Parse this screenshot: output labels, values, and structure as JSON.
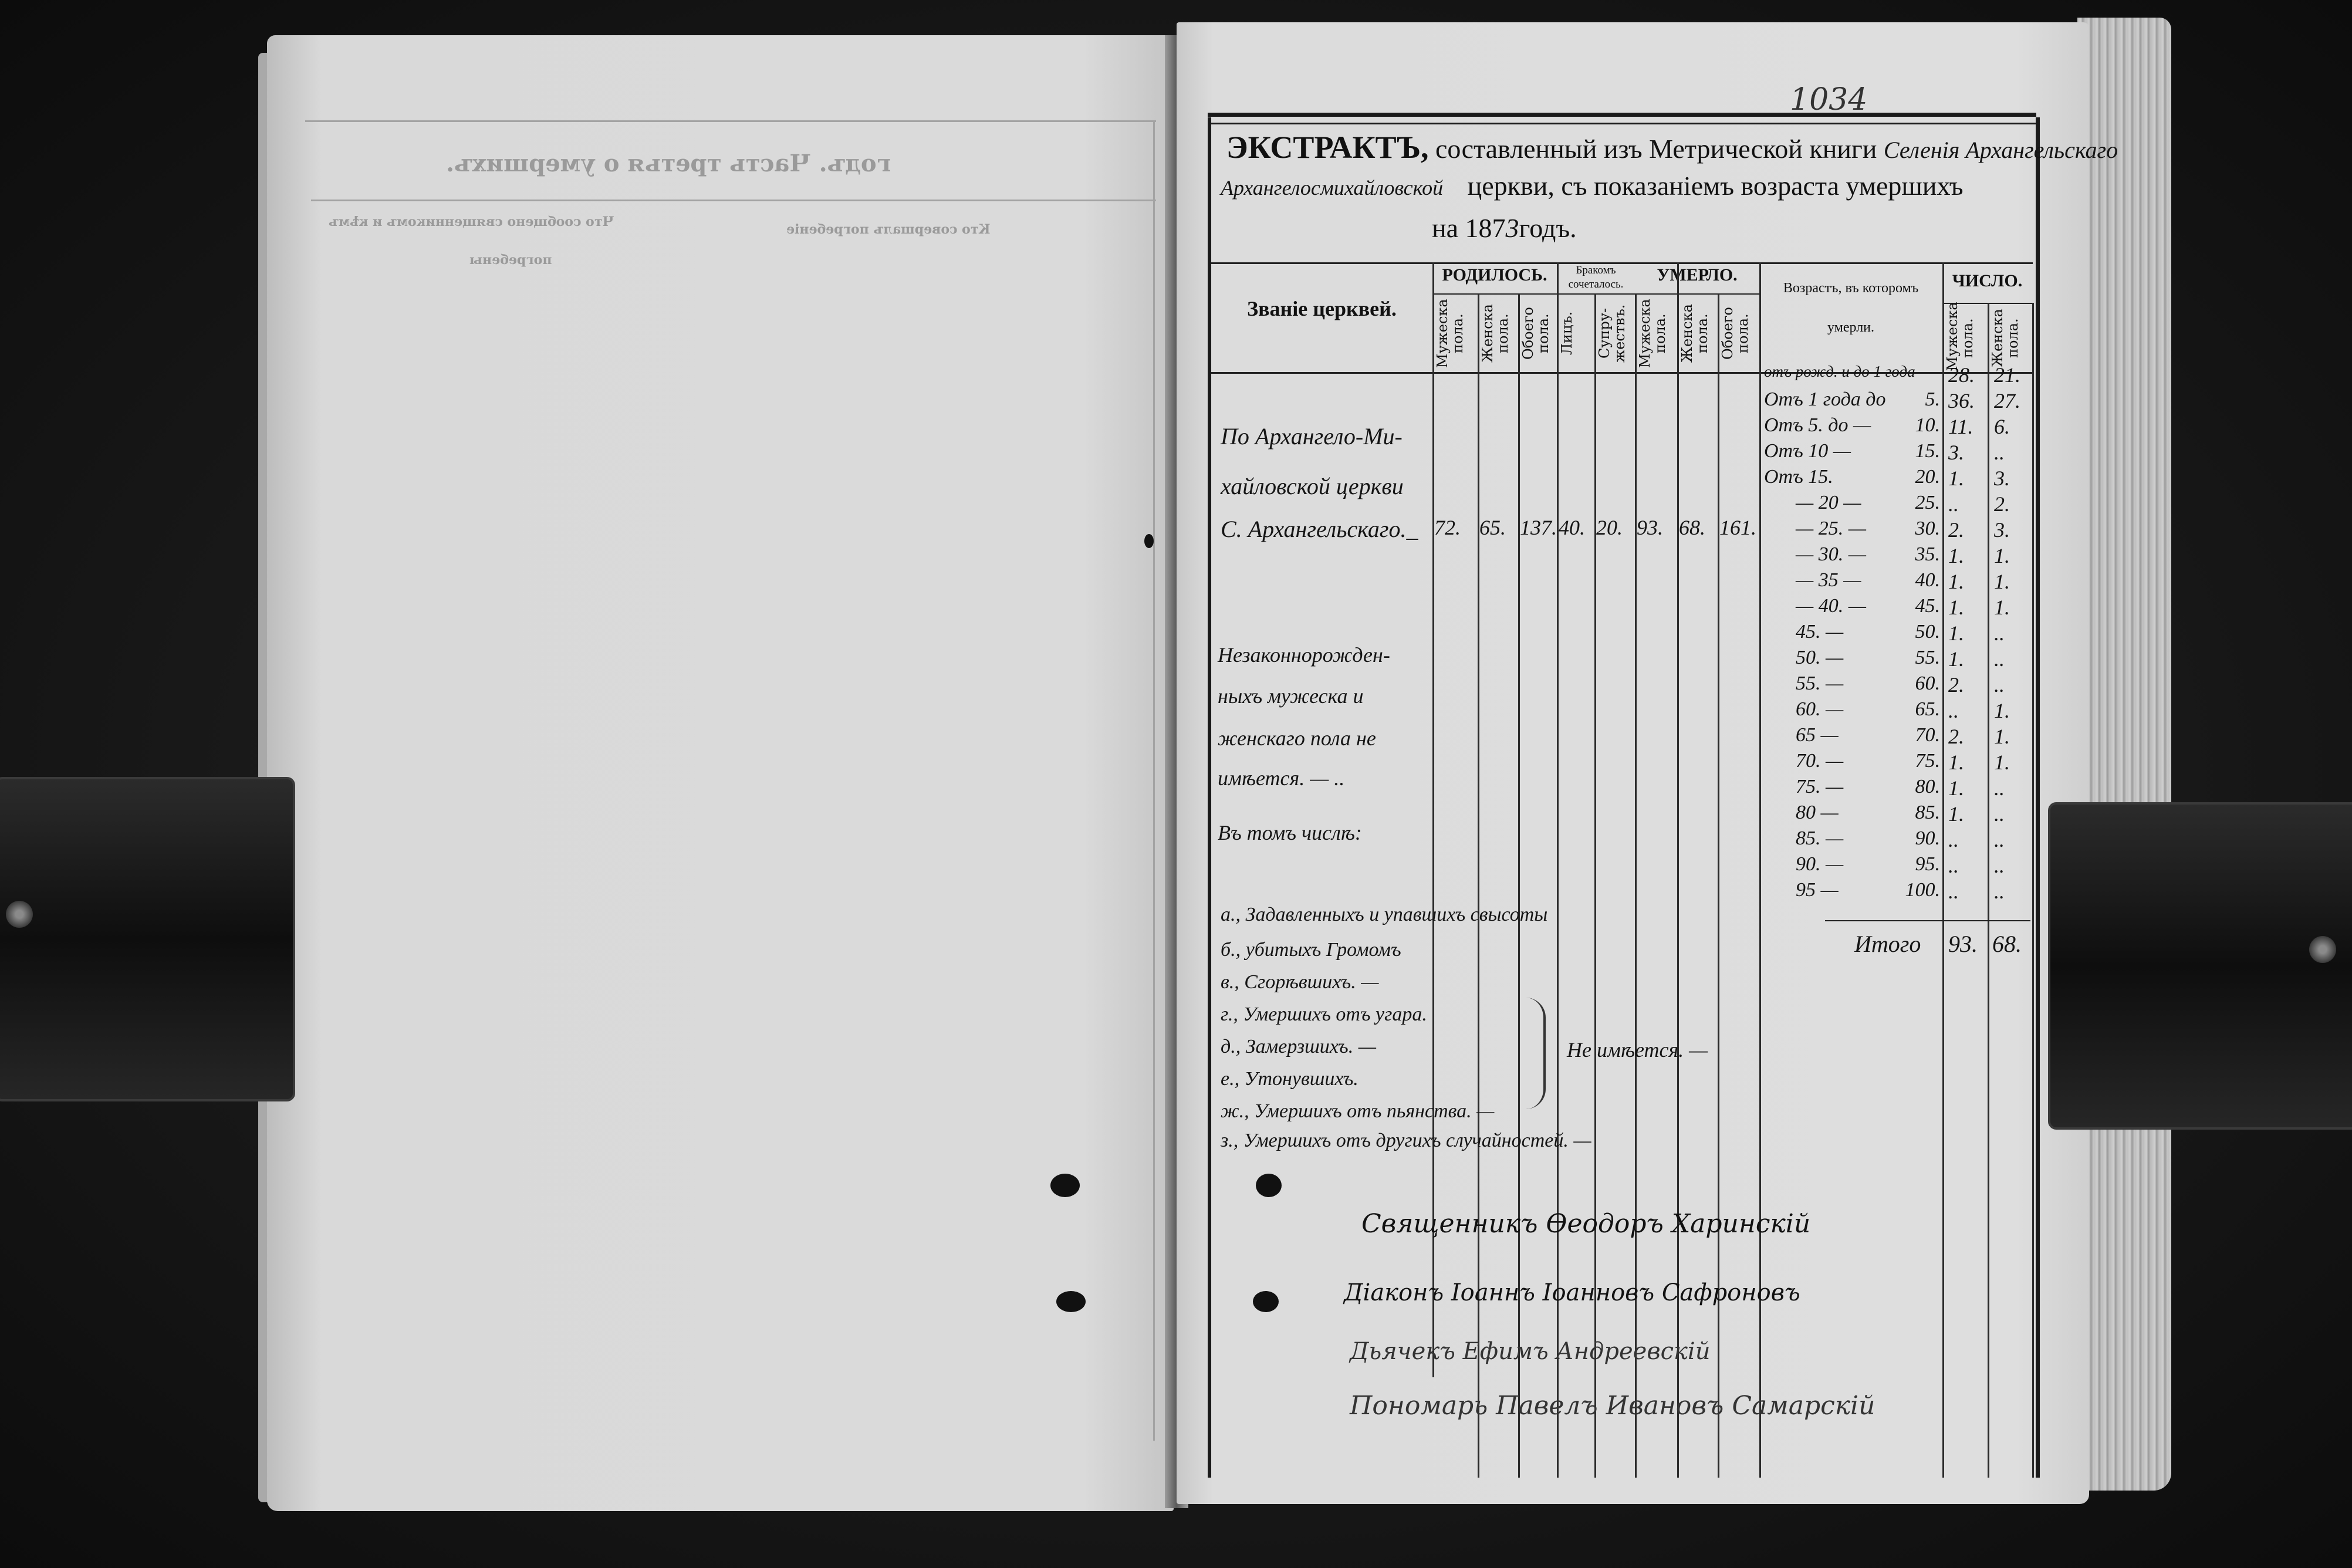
{
  "colors": {
    "paper": "#dadada",
    "ink": "#151515",
    "background": "#161616",
    "bleed_through": "#9a9a9a"
  },
  "left_page": {
    "bleed_title": "годъ. Часть третья о умершихъ.",
    "bleed_col1": "Что сообщено священникомъ и кѣмъ",
    "bleed_col2": "Кто совершалъ погребеніе",
    "bleed_col3": "погребены"
  },
  "right_page": {
    "folio": "1034",
    "header": {
      "line1_bold": "ЭКСТРАКТЪ,",
      "line1_printed": "составленный изъ Метрической книги",
      "line1_hand": "Селенія Архангельскаго",
      "line2_hand": "Архангелосмихайловской",
      "line2_printed": "церкви, съ показаніемъ возраста умершихъ",
      "line3_printed_a": "на 187",
      "line3_hand": "3",
      "line3_printed_b": "годъ."
    },
    "table_header": {
      "church_title": "Званіе церквей.",
      "born": "РОДИЛОСЬ.",
      "married_1": "Бракомъ",
      "married_2": "сочеталось.",
      "died": "УМЕРЛО.",
      "age_1": "Возрастъ, въ которомъ",
      "age_2": "умерли.",
      "count": "ЧИСЛО.",
      "sub": [
        "Мужеска пола.",
        "Женска пола.",
        "Обоего пола.",
        "Лицъ.",
        "Супру-жествъ.",
        "Мужеска пола.",
        "Женска пола.",
        "Обоего пола."
      ],
      "count_sub": [
        "Мужеска пола.",
        "Женска пола."
      ]
    },
    "church_entry": {
      "lines": [
        "По Архангело-Ми-",
        "хайловской церкви",
        "С. Архангельскаго._"
      ],
      "values": [
        "72.",
        "65.",
        "137.",
        "40.",
        "20.",
        "93.",
        "68.",
        "161."
      ]
    },
    "age_rows": [
      {
        "from": "отъ рожд. и до 1 года",
        "to": "",
        "m": "28.",
        "f": "21."
      },
      {
        "from": "Отъ 1 года до",
        "to": "5.",
        "m": "36.",
        "f": "27."
      },
      {
        "from": "Отъ 5.  до —",
        "to": "10.",
        "m": "11.",
        "f": "6."
      },
      {
        "from": "Отъ 10 —",
        "to": "15.",
        "m": "3.",
        "f": ".."
      },
      {
        "from": "Отъ 15.",
        "to": "20.",
        "m": "1.",
        "f": "3."
      },
      {
        "from": "— 20 —",
        "to": "25.",
        "m": "..",
        "f": "2."
      },
      {
        "from": "— 25. —",
        "to": "30.",
        "m": "2.",
        "f": "3."
      },
      {
        "from": "— 30. —",
        "to": "35.",
        "m": "1.",
        "f": "1."
      },
      {
        "from": "— 35 —",
        "to": "40.",
        "m": "1.",
        "f": "1."
      },
      {
        "from": "— 40. —",
        "to": "45.",
        "m": "1.",
        "f": "1."
      },
      {
        "from": "45. —",
        "to": "50.",
        "m": "1.",
        "f": ".."
      },
      {
        "from": "50. —",
        "to": "55.",
        "m": "1.",
        "f": ".."
      },
      {
        "from": "55. —",
        "to": "60.",
        "m": "2.",
        "f": ".."
      },
      {
        "from": "60. —",
        "to": "65.",
        "m": "..",
        "f": "1."
      },
      {
        "from": "65 —",
        "to": "70.",
        "m": "2.",
        "f": "1."
      },
      {
        "from": "70. —",
        "to": "75.",
        "m": "1.",
        "f": "1."
      },
      {
        "from": "75. —",
        "to": "80.",
        "m": "1.",
        "f": ".."
      },
      {
        "from": "80 —",
        "to": "85.",
        "m": "1.",
        "f": ".."
      },
      {
        "from": "85. —",
        "to": "90.",
        "m": "..",
        "f": ".."
      },
      {
        "from": "90. —",
        "to": "95.",
        "m": "..",
        "f": ".."
      },
      {
        "from": "95 —",
        "to": "100.",
        "m": "..",
        "f": ".."
      }
    ],
    "illegitimate_lines": [
      "Незаконнорожден-",
      "ныхъ мужеска и",
      "женскаго пола не",
      "имѣется. — .."
    ],
    "including": "Въ томъ числѣ:",
    "totals": {
      "label": "Итого",
      "m": "93.",
      "f": "68."
    },
    "causes": [
      "а., Задавленныхъ и упавшихъ свысоты",
      "б., убитыхъ Громомъ",
      "в., Сгорѣвшихъ. —",
      "г., Умершихъ отъ угара.",
      "д., Замерзшихъ. —",
      "е., Утонувшихъ.",
      "ж., Умершихъ отъ пьянства. —",
      "з., Умершихъ отъ другихъ случайностей. —"
    ],
    "causes_note": "Не имѣется. —",
    "signatures": [
      "Священникъ Өеодоръ Харинскій",
      "Діаконъ Іоаннъ Іоанновъ Сафроновъ",
      "Дьячекъ Ефимъ Андреевскій",
      "Пономарь Павелъ Ивановъ Самарскій"
    ]
  }
}
